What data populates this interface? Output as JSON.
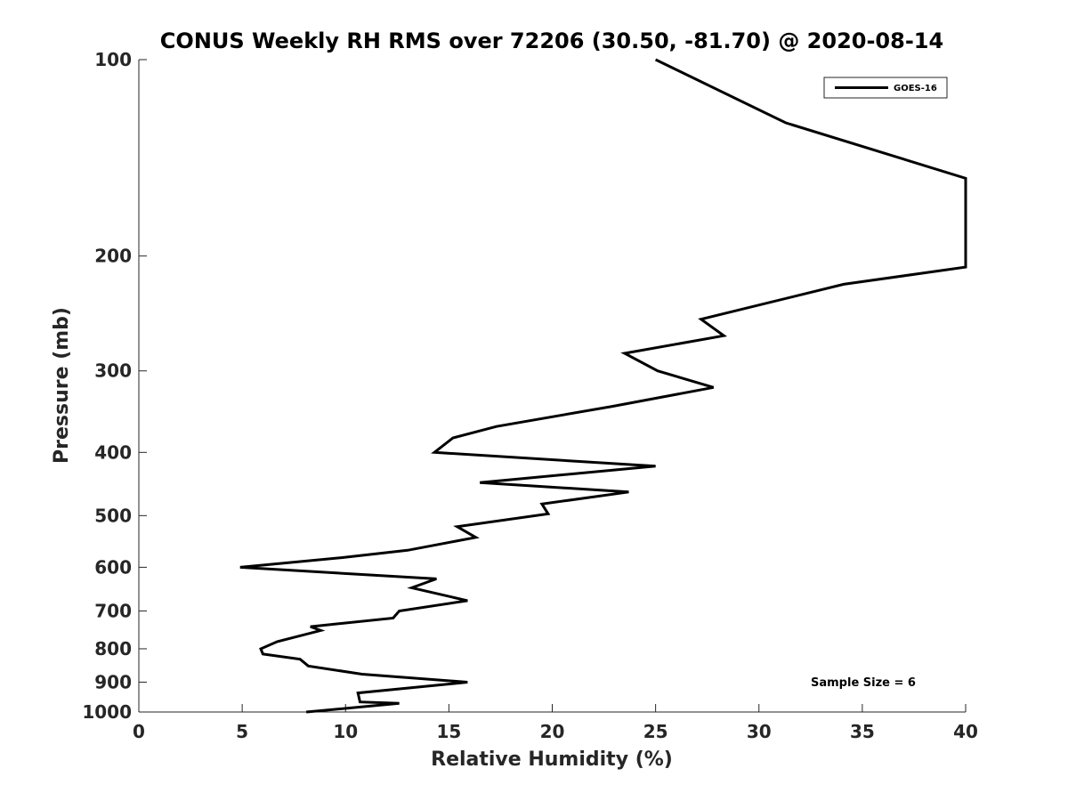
{
  "chart_data": {
    "type": "line",
    "title": "CONUS Weekly RH RMS over 72206 (30.50, -81.70) @ 2020-08-14",
    "xlabel": "Relative Humidity (%)",
    "ylabel": "Pressure (mb)",
    "xlim": [
      0,
      40
    ],
    "ylim": [
      100,
      1000
    ],
    "y_scale": "log",
    "y_direction": "reversed",
    "x_ticks": [
      0,
      5,
      10,
      15,
      20,
      25,
      30,
      35,
      40
    ],
    "y_ticks": [
      100,
      200,
      300,
      400,
      500,
      600,
      700,
      800,
      900,
      1000
    ],
    "grid": false,
    "legend_position": "top-right",
    "annotation": "Sample Size = 6",
    "series": [
      {
        "name": "GOES-16",
        "color": "#000000",
        "points": [
          [
            25.0,
            100
          ],
          [
            31.3,
            125
          ],
          [
            40.0,
            152
          ],
          [
            40.0,
            208
          ],
          [
            34.1,
            221
          ],
          [
            27.2,
            250
          ],
          [
            28.3,
            265
          ],
          [
            23.5,
            282
          ],
          [
            25.1,
            300
          ],
          [
            27.8,
            318
          ],
          [
            22.9,
            340
          ],
          [
            17.3,
            365
          ],
          [
            15.2,
            380
          ],
          [
            14.3,
            400
          ],
          [
            25.0,
            420
          ],
          [
            16.5,
            445
          ],
          [
            23.7,
            460
          ],
          [
            19.5,
            480
          ],
          [
            19.8,
            497
          ],
          [
            15.4,
            520
          ],
          [
            16.3,
            540
          ],
          [
            13.0,
            565
          ],
          [
            9.8,
            580
          ],
          [
            4.9,
            600
          ],
          [
            14.4,
            625
          ],
          [
            13.2,
            645
          ],
          [
            15.9,
            675
          ],
          [
            12.6,
            700
          ],
          [
            12.3,
            718
          ],
          [
            8.3,
            740
          ],
          [
            8.8,
            750
          ],
          [
            6.7,
            780
          ],
          [
            5.9,
            800
          ],
          [
            6.0,
            815
          ],
          [
            7.8,
            830
          ],
          [
            8.2,
            850
          ],
          [
            10.8,
            875
          ],
          [
            15.9,
            900
          ],
          [
            10.6,
            935
          ],
          [
            10.7,
            965
          ],
          [
            12.6,
            970
          ],
          [
            8.1,
            1000
          ]
        ]
      }
    ]
  }
}
